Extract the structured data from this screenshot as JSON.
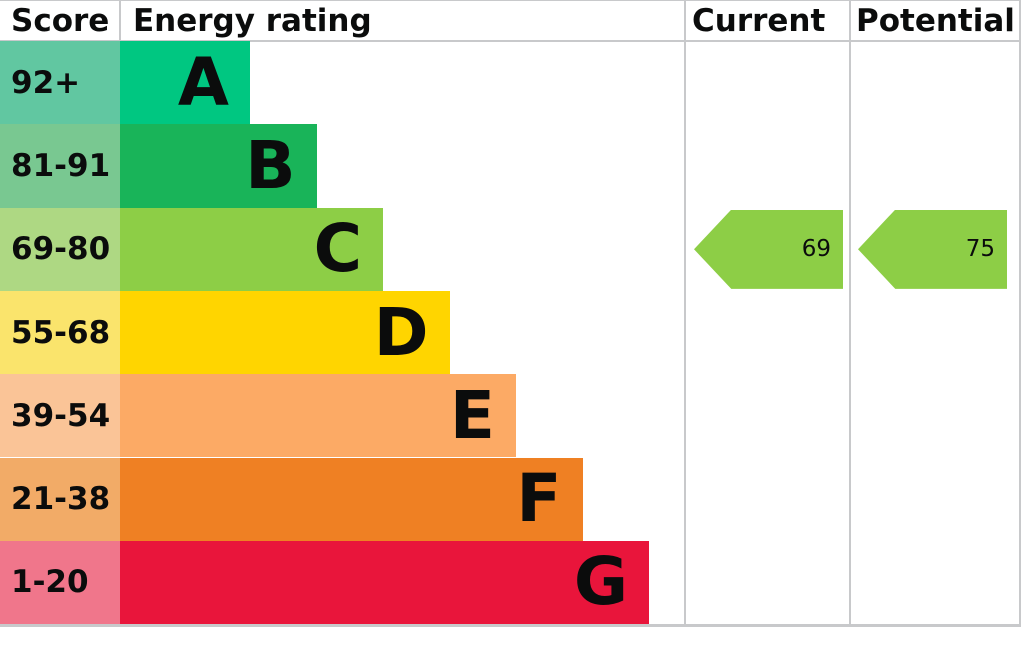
{
  "header": {
    "score": "Score",
    "energy_rating": "Energy rating",
    "current": "Current",
    "potential": "Potential"
  },
  "chart_data": {
    "type": "bar",
    "title": "Energy rating",
    "categories": [
      "A",
      "B",
      "C",
      "D",
      "E",
      "F",
      "G"
    ],
    "bands": [
      {
        "range": "92+",
        "letter": "A",
        "color": "#00c781",
        "score_color": "#61c7a1"
      },
      {
        "range": "81-91",
        "letter": "B",
        "color": "#19b459",
        "score_color": "#79c891"
      },
      {
        "range": "69-80",
        "letter": "C",
        "color": "#8dce46",
        "score_color": "#aed883"
      },
      {
        "range": "55-68",
        "letter": "D",
        "color": "#ffd500",
        "score_color": "#fae46c"
      },
      {
        "range": "39-54",
        "letter": "E",
        "color": "#fcaa65",
        "score_color": "#fac497"
      },
      {
        "range": "21-38",
        "letter": "F",
        "color": "#ef8023",
        "score_color": "#f2ab67"
      },
      {
        "range": "1-20",
        "letter": "G",
        "color": "#e9153b",
        "score_color": "#f0768b"
      }
    ],
    "current": {
      "value": 69,
      "band": "C",
      "arrow_color": "#8dce46"
    },
    "potential": {
      "value": 75,
      "band": "C",
      "arrow_color": "#8dce46"
    }
  },
  "colors": {
    "text": "#0b0c0c",
    "border": "#c8c9cb",
    "background": "#ffffff"
  }
}
